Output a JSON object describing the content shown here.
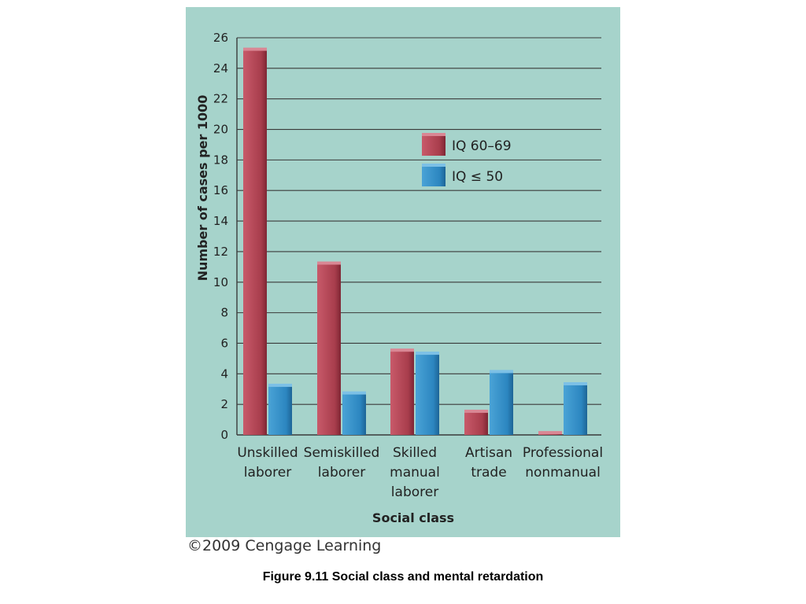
{
  "caption": "Figure 9.11  Social class and mental retardation",
  "copyright": "©2009 Cengage Learning",
  "colors": {
    "background": "#a6d3cb",
    "series1": "#a83d4c",
    "series2": "#2c86c0",
    "grid": "#3a3a3a"
  },
  "chart_data": {
    "type": "bar",
    "title": "",
    "xlabel": "Social class",
    "ylabel": "Number of cases per 1000",
    "ylim": [
      0,
      26
    ],
    "yticks": [
      0,
      2,
      4,
      6,
      8,
      10,
      12,
      14,
      16,
      18,
      20,
      22,
      24,
      26
    ],
    "categories": [
      [
        "Unskilled",
        "laborer"
      ],
      [
        "Semiskilled",
        "laborer"
      ],
      [
        "Skilled",
        "manual",
        "laborer"
      ],
      [
        "Artisan",
        "trade"
      ],
      [
        "Professional",
        "nonmanual"
      ]
    ],
    "series": [
      {
        "name": "IQ 60–69",
        "values": [
          25.3,
          11.3,
          5.6,
          1.6,
          0.2
        ]
      },
      {
        "name": "IQ ≤ 50",
        "values": [
          3.3,
          2.8,
          5.4,
          4.2,
          3.4
        ]
      }
    ],
    "grid": true,
    "legend_position": "upper-right"
  }
}
